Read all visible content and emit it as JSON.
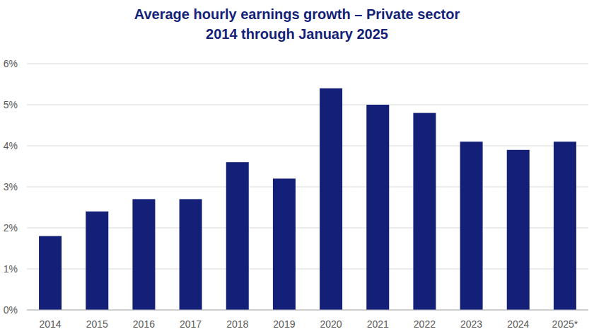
{
  "chart_data": {
    "type": "bar",
    "title": "Average hourly earnings growth – Private sector",
    "subtitle": "2014 through January 2025",
    "categories": [
      "2014",
      "2015",
      "2016",
      "2017",
      "2018",
      "2019",
      "2020",
      "2021",
      "2022",
      "2023",
      "2024",
      "2025*"
    ],
    "values": [
      1.8,
      2.4,
      2.7,
      2.7,
      3.6,
      3.2,
      5.4,
      5.0,
      4.8,
      4.1,
      3.9,
      4.1
    ],
    "color": "#141f78",
    "ylim": [
      0,
      6
    ],
    "yticks": [
      {
        "value": 0,
        "label": "0%"
      },
      {
        "value": 1,
        "label": "1%"
      },
      {
        "value": 2,
        "label": "2%"
      },
      {
        "value": 3,
        "label": "3%"
      },
      {
        "value": 4,
        "label": "4%"
      },
      {
        "value": 5,
        "label": "5%"
      },
      {
        "value": 6,
        "label": "6%"
      }
    ],
    "grid": true
  }
}
